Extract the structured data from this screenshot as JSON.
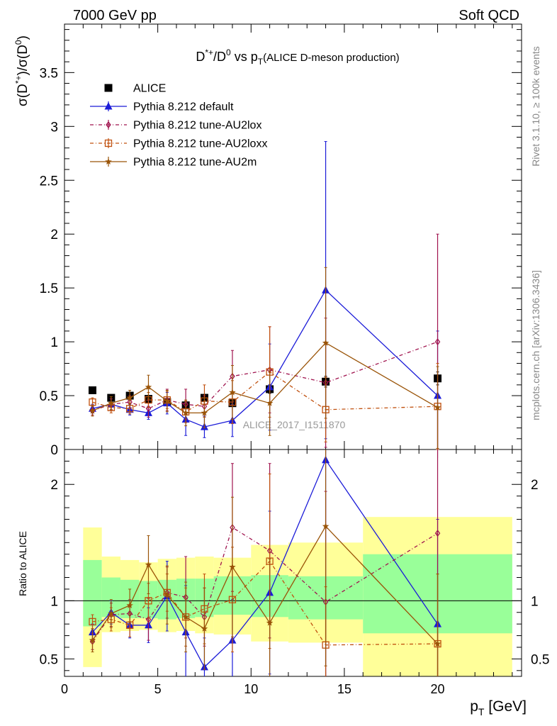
{
  "header": {
    "left": "7000 GeV pp",
    "right": "Soft QCD"
  },
  "side_labels": {
    "rivet": "Rivet 3.1.10, ≥ 100k events",
    "mcplots": "mcplots.cern.ch [arXiv:1306.3436]"
  },
  "title": {
    "main_a": "D",
    "main_a_sup": "*+",
    "main_b": "/D",
    "main_b_sup": "0",
    "main_c": " vs p",
    "main_c_sub": "T",
    "paren": "(ALICE D-meson production)"
  },
  "watermark": "ALICE_2017_I1511870",
  "top_ylabel": "σ(D*+)/σ(D0)",
  "ratio_ylabel": "Ratio to ALICE",
  "xlabel": "p_T [GeV]",
  "legend": [
    {
      "label": "ALICE",
      "color": "#000000",
      "marker": "square"
    },
    {
      "label": "Pythia 8.212 default",
      "color": "#1b1bd8",
      "marker": "triangle"
    },
    {
      "label": "Pythia 8.212 tune-AU2lox",
      "color": "#a0134e",
      "marker": "diamond"
    },
    {
      "label": "Pythia 8.212 tune-AU2loxx",
      "color": "#c0500e",
      "marker": "square-open"
    },
    {
      "label": "Pythia 8.212 tune-AU2m",
      "color": "#9a5408",
      "marker": "star"
    }
  ],
  "chart_data": [
    {
      "type": "scatter",
      "panel": "main",
      "title": "D*+/D0 vs pT (ALICE D-meson production)",
      "xlabel": "p_T [GeV]",
      "ylabel": "σ(D*+)/σ(D0)",
      "xlim": [
        0,
        24.5
      ],
      "ylim": [
        0,
        3.95
      ],
      "x_ticks": [
        0,
        5,
        10,
        15,
        20
      ],
      "y_ticks": [
        0,
        0.5,
        1,
        1.5,
        2,
        2.5,
        3,
        3.5
      ],
      "y_tick_labels": [
        "0",
        "0.5",
        "1",
        "1.5",
        "2",
        "2.5",
        "3",
        "3.5"
      ],
      "x": [
        1.5,
        2.5,
        3.5,
        4.5,
        5.5,
        6.5,
        7.5,
        9,
        11,
        14,
        20
      ],
      "series": [
        {
          "name": "ALICE",
          "color": "#000000",
          "marker": "square",
          "line": "none",
          "values": [
            0.55,
            0.48,
            0.5,
            0.47,
            0.44,
            0.41,
            0.48,
            0.43,
            0.56,
            0.63,
            0.66
          ],
          "errors": [
            0.02,
            0.02,
            0.02,
            0.02,
            0.02,
            0.02,
            0.02,
            0.03,
            0.04,
            0.05,
            0.06
          ]
        },
        {
          "name": "Pythia 8.212 default",
          "color": "#1b1bd8",
          "marker": "triangle",
          "line": "solid",
          "values": [
            0.38,
            0.42,
            0.37,
            0.34,
            0.43,
            0.28,
            0.21,
            0.27,
            0.58,
            1.48,
            0.5
          ],
          "errors": [
            0.04,
            0.05,
            0.05,
            0.06,
            0.1,
            0.15,
            0.1,
            0.15,
            0.4,
            1.38,
            0.6
          ]
        },
        {
          "name": "Pythia 8.212 tune-AU2lox",
          "color": "#a0134e",
          "marker": "diamond",
          "line": "dashdot",
          "values": [
            0.36,
            0.42,
            0.44,
            0.38,
            0.46,
            0.42,
            0.4,
            0.68,
            0.74,
            0.62,
            1.0
          ],
          "errors": [
            0.04,
            0.05,
            0.06,
            0.08,
            0.1,
            0.14,
            0.1,
            0.24,
            0.4,
            0.6,
            1.0
          ]
        },
        {
          "name": "Pythia 8.212 tune-AU2loxx",
          "color": "#c0500e",
          "marker": "square-open",
          "line": "dashdot",
          "values": [
            0.44,
            0.39,
            0.38,
            0.46,
            0.46,
            0.35,
            0.45,
            0.44,
            0.72,
            0.37,
            0.4
          ],
          "errors": [
            0.04,
            0.05,
            0.05,
            0.07,
            0.08,
            0.1,
            0.15,
            0.2,
            0.42,
            0.3,
            0.4
          ]
        },
        {
          "name": "Pythia 8.212 tune-AU2m",
          "color": "#9a5408",
          "marker": "star",
          "line": "solid",
          "values": [
            0.36,
            0.43,
            0.48,
            0.58,
            0.45,
            0.34,
            0.34,
            0.53,
            0.43,
            0.99,
            0.39
          ],
          "errors": [
            0.05,
            0.06,
            0.07,
            0.11,
            0.1,
            0.12,
            0.14,
            0.25,
            0.3,
            0.7,
            0.38
          ]
        }
      ]
    },
    {
      "type": "scatter",
      "panel": "ratio",
      "ylabel": "Ratio to ALICE",
      "xlabel": "p_T [GeV]",
      "xlim": [
        0,
        24.5
      ],
      "ylim": [
        0.35,
        2.3
      ],
      "y_ticks": [
        0.5,
        1,
        2
      ],
      "y_tick_labels": [
        "0.5",
        "1",
        "2"
      ],
      "x_ticks": [
        0,
        5,
        10,
        15,
        20
      ],
      "x_tick_labels": [
        "0",
        "5",
        "10",
        "15",
        "20"
      ],
      "reference": 1,
      "bands": [
        {
          "x0": 1,
          "x1": 2,
          "inner": [
            0.78,
            1.35
          ],
          "outer": [
            0.43,
            1.63
          ]
        },
        {
          "x0": 2,
          "x1": 3,
          "inner": [
            0.86,
            1.2
          ],
          "outer": [
            0.73,
            1.38
          ]
        },
        {
          "x0": 3,
          "x1": 4,
          "inner": [
            0.85,
            1.18
          ],
          "outer": [
            0.74,
            1.35
          ]
        },
        {
          "x0": 4,
          "x1": 5,
          "inner": [
            0.85,
            1.17
          ],
          "outer": [
            0.75,
            1.33
          ]
        },
        {
          "x0": 5,
          "x1": 6,
          "inner": [
            0.84,
            1.18
          ],
          "outer": [
            0.73,
            1.36
          ]
        },
        {
          "x0": 6,
          "x1": 7,
          "inner": [
            0.85,
            1.19
          ],
          "outer": [
            0.74,
            1.37
          ]
        },
        {
          "x0": 7,
          "x1": 8,
          "inner": [
            0.86,
            1.19
          ],
          "outer": [
            0.72,
            1.38
          ]
        },
        {
          "x0": 8,
          "x1": 10,
          "inner": [
            0.88,
            1.21
          ],
          "outer": [
            0.71,
            1.37
          ]
        },
        {
          "x0": 10,
          "x1": 12,
          "inner": [
            0.86,
            1.22
          ],
          "outer": [
            0.65,
            1.48
          ]
        },
        {
          "x0": 12,
          "x1": 16,
          "inner": [
            0.84,
            1.21
          ],
          "outer": [
            0.64,
            1.5
          ]
        },
        {
          "x0": 16,
          "x1": 24,
          "inner": [
            0.72,
            1.4
          ],
          "outer": [
            0.35,
            1.72
          ]
        }
      ],
      "x": [
        1.5,
        2.5,
        3.5,
        4.5,
        5.5,
        6.5,
        7.5,
        9,
        11,
        14,
        20
      ],
      "series": [
        {
          "name": "Pythia 8.212 default",
          "color": "#1b1bd8",
          "marker": "triangle",
          "line": "solid",
          "values": [
            0.73,
            0.9,
            0.79,
            0.79,
            1.04,
            0.73,
            0.43,
            0.66,
            1.07,
            2.21,
            0.8
          ],
          "errors": [
            0.07,
            0.1,
            0.11,
            0.15,
            0.3,
            0.4,
            0.25,
            0.35,
            0.7,
            2.1,
            0.9
          ]
        },
        {
          "name": "Pythia 8.212 tune-AU2lox",
          "color": "#a0134e",
          "marker": "diamond",
          "line": "dashdot",
          "values": [
            0.65,
            0.88,
            0.89,
            0.84,
            1.07,
            1.03,
            0.86,
            1.63,
            1.43,
            0.99,
            1.58
          ],
          "errors": [
            0.07,
            0.1,
            0.12,
            0.18,
            0.22,
            0.35,
            0.25,
            0.55,
            0.75,
            0.95,
            1.5
          ]
        },
        {
          "name": "Pythia 8.212 tune-AU2loxx",
          "color": "#c0500e",
          "marker": "square-open",
          "line": "dashdot",
          "values": [
            0.82,
            0.84,
            0.79,
            1.0,
            1.07,
            0.86,
            0.93,
            1.01,
            1.34,
            0.62,
            0.63
          ],
          "errors": [
            0.06,
            0.1,
            0.1,
            0.15,
            0.16,
            0.25,
            0.3,
            0.45,
            0.75,
            0.5,
            0.6
          ]
        },
        {
          "name": "Pythia 8.212 tune-AU2m",
          "color": "#9a5408",
          "marker": "star",
          "line": "solid",
          "values": [
            0.66,
            0.89,
            0.96,
            1.31,
            1.05,
            0.86,
            0.76,
            1.29,
            0.81,
            1.64,
            0.63
          ],
          "errors": [
            0.1,
            0.12,
            0.14,
            0.25,
            0.25,
            0.3,
            0.35,
            0.6,
            0.55,
            1.2,
            0.6
          ]
        }
      ]
    }
  ]
}
